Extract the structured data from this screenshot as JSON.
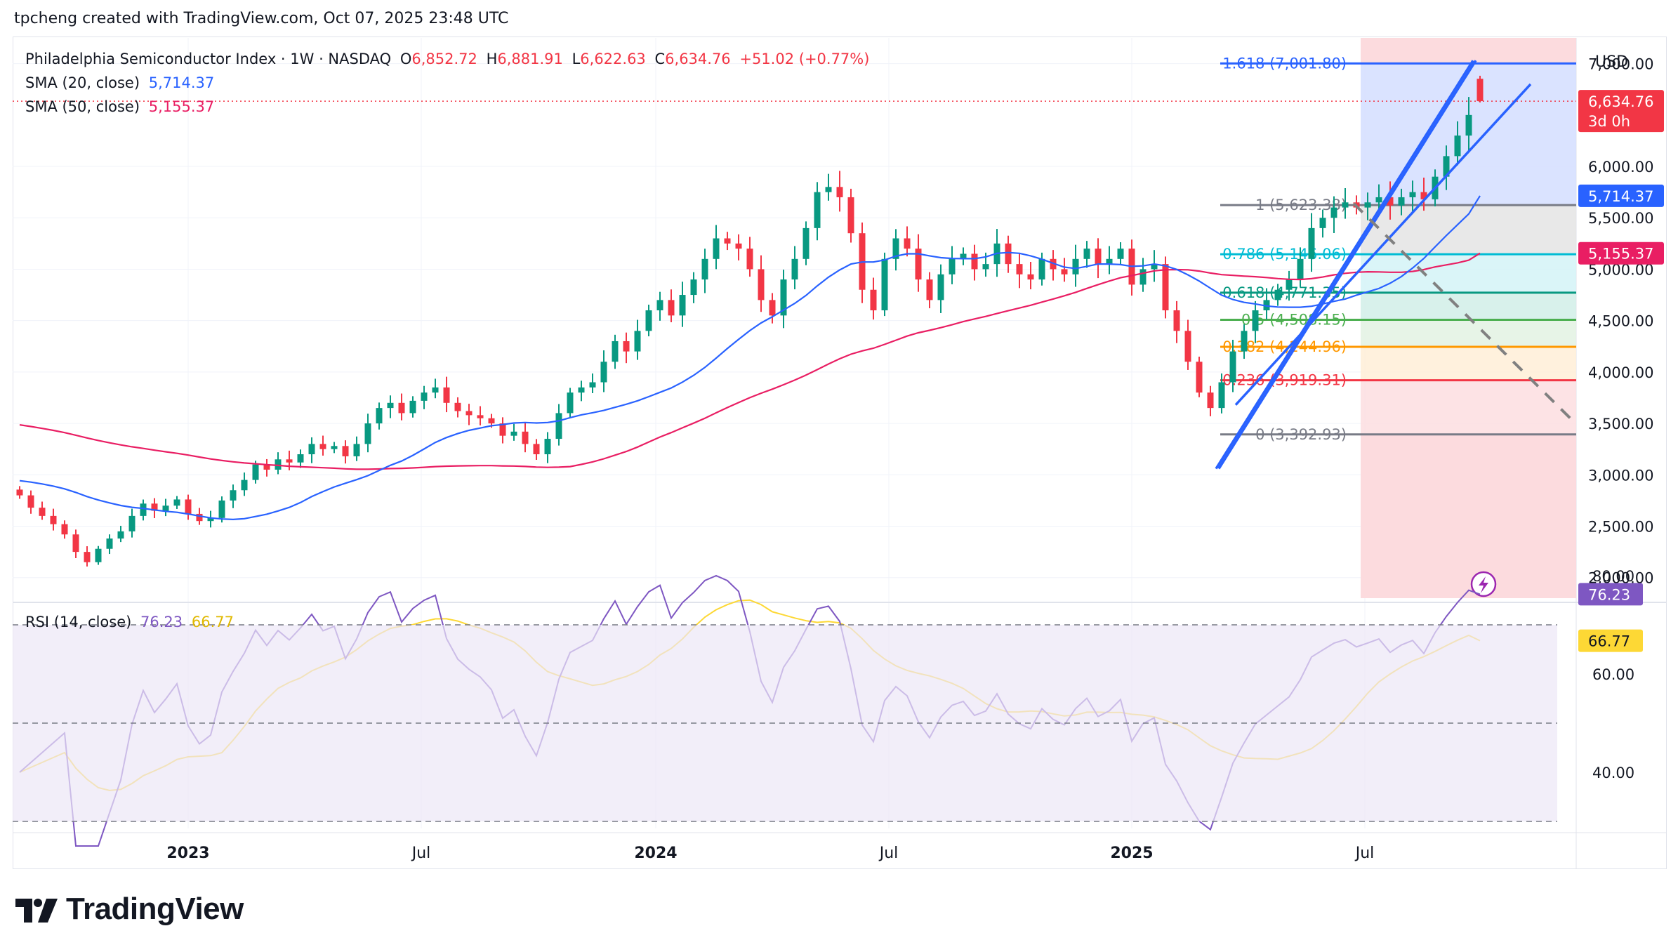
{
  "header": {
    "text": "tpcheng created with TradingView.com, Oct 07, 2025 23:48 UTC"
  },
  "brand": {
    "name": "TradingView"
  },
  "legend": {
    "symbol": "Philadelphia Semiconductor Index · 1W · NASDAQ",
    "o_label": "O",
    "o_value": "6,852.72",
    "h_label": "H",
    "h_value": "6,881.91",
    "l_label": "L",
    "l_value": "6,622.63",
    "c_label": "C",
    "c_value": "6,634.76",
    "change": "+51.02 (+0.77%)",
    "sma20_label": "SMA (20, close)",
    "sma20_value": "5,714.37",
    "sma50_label": "SMA (50, close)",
    "sma50_value": "5,155.37",
    "rsi_label": "RSI (14, close)",
    "rsi_value": "76.23",
    "rsi_ma_value": "66.77"
  },
  "price_axis": {
    "currency": "USD",
    "ticks": [
      "2,000.00",
      "2,500.00",
      "3,000.00",
      "3,500.00",
      "4,000.00",
      "4,500.00",
      "5,000.00",
      "5,500.00",
      "6,000.00",
      "7,000.00"
    ],
    "last_price_label": "6,634.76",
    "countdown": "3d 0h",
    "sma20_label": "5,714.37",
    "sma50_label": "5,155.37"
  },
  "rsi_axis": {
    "ticks": [
      "40.00",
      "60.00",
      "80.00"
    ],
    "rsi_label": "76.23",
    "rsi_ma_label": "66.77"
  },
  "time_axis": {
    "labels": [
      "2023",
      "Jul",
      "2024",
      "Jul",
      "2025",
      "Jul"
    ]
  },
  "fib_levels": [
    {
      "label": "1.618 (7,001.80)",
      "price": 7001.8,
      "color": "#2962ff"
    },
    {
      "label": "1 (5,623.38)",
      "price": 5623.38,
      "color": "#787b86"
    },
    {
      "label": "0.786 (5,146.06)",
      "price": 5146.06,
      "color": "#00bcd4"
    },
    {
      "label": "0.618 (4,771.35)",
      "price": 4771.35,
      "color": "#089981"
    },
    {
      "label": "0.5 (4,508.15)",
      "price": 4508.15,
      "color": "#4caf50"
    },
    {
      "label": "0.382 (4,244.96)",
      "price": 4244.96,
      "color": "#ff9800"
    },
    {
      "label": "0.236 (3,919.31)",
      "price": 3919.31,
      "color": "#f23645"
    },
    {
      "label": "0 (3,392.93)",
      "price": 3392.93,
      "color": "#787b86"
    }
  ],
  "colors": {
    "up": "#089981",
    "down": "#f23645",
    "sma20": "#2962ff",
    "sma50": "#e91e63",
    "rsi": "#7e57c2",
    "rsi_ma": "#fdd835",
    "channel": "#2962ff"
  },
  "chart_data": {
    "type": "candlestick",
    "title": "Philadelphia Semiconductor Index · 1W · NASDAQ",
    "interval": "1W",
    "x_range": [
      "2022-10",
      "2025-10"
    ],
    "ylim": [
      1800,
      7250
    ],
    "last": {
      "open": 6852.72,
      "high": 6881.91,
      "low": 6622.63,
      "close": 6634.76
    },
    "series": [
      {
        "name": "Philadelphia Semiconductor Index",
        "close": [
          2800,
          2680,
          2600,
          2520,
          2420,
          2250,
          2150,
          2280,
          2380,
          2450,
          2600,
          2720,
          2650,
          2700,
          2760,
          2620,
          2550,
          2580,
          2750,
          2850,
          2950,
          3100,
          3050,
          3150,
          3120,
          3200,
          3300,
          3250,
          3280,
          3180,
          3300,
          3500,
          3650,
          3700,
          3600,
          3720,
          3800,
          3850,
          3700,
          3620,
          3580,
          3550,
          3500,
          3380,
          3420,
          3300,
          3200,
          3350,
          3600,
          3800,
          3850,
          3900,
          4100,
          4300,
          4200,
          4400,
          4600,
          4700,
          4550,
          4750,
          4900,
          5100,
          5300,
          5250,
          5200,
          5000,
          4700,
          4550,
          4900,
          5100,
          5400,
          5750,
          5800,
          5700,
          5350,
          4800,
          4600,
          5100,
          5300,
          5200,
          4900,
          4700,
          4950,
          5100,
          5150,
          5000,
          5050,
          5250,
          5050,
          4950,
          4900,
          5100,
          5000,
          4950,
          5100,
          5200,
          5050,
          5100,
          5200,
          4850,
          5000,
          5050,
          4600,
          4400,
          4100,
          3800,
          3650,
          3900,
          4200,
          4400,
          4600,
          4700,
          4800,
          4900,
          5100,
          5400,
          5500,
          5600,
          5650,
          5600,
          5650,
          5700,
          5620,
          5700,
          5750,
          5680,
          5900,
          6100,
          6300,
          6500,
          6634.76
        ]
      },
      {
        "name": "SMA (20, close)",
        "last": 5714.37
      },
      {
        "name": "SMA (50, close)",
        "last": 5155.37
      },
      {
        "name": "RSI (14, close)",
        "last": 76.23
      },
      {
        "name": "RSI MA",
        "last": 66.77
      }
    ],
    "rsi_levels": [
      30,
      50,
      70
    ]
  }
}
